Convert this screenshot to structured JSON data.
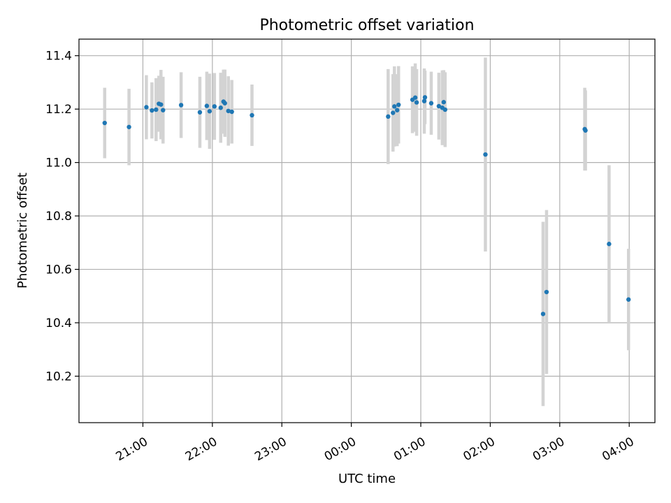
{
  "chart_data": {
    "type": "scatter",
    "title": "Photometric offset variation",
    "xlabel": "UTC time",
    "ylabel": "Photometric offset",
    "x_unit": "hours after 00:00 UTC",
    "xlim": [
      -3.92,
      4.37
    ],
    "ylim": [
      10.026,
      11.462
    ],
    "x_ticks": [
      {
        "value": -3.0,
        "label": "21:00"
      },
      {
        "value": -2.0,
        "label": "22:00"
      },
      {
        "value": -1.0,
        "label": "23:00"
      },
      {
        "value": 0.0,
        "label": "00:00"
      },
      {
        "value": 1.0,
        "label": "01:00"
      },
      {
        "value": 2.0,
        "label": "02:00"
      },
      {
        "value": 3.0,
        "label": "03:00"
      },
      {
        "value": 4.0,
        "label": "04:00"
      }
    ],
    "y_ticks": [
      10.2,
      10.4,
      10.6,
      10.8,
      11.0,
      11.2,
      11.4
    ],
    "y_tick_labels": [
      "10.2",
      "10.4",
      "10.6",
      "10.8",
      "11.0",
      "11.2",
      "11.4"
    ],
    "grid": true,
    "colors": {
      "point": "#1f77b4",
      "errorbar": "#d3d3d3"
    },
    "series": [
      {
        "points": [
          {
            "x": -3.55,
            "y": 11.148,
            "err": 0.132
          },
          {
            "x": -3.2,
            "y": 11.133,
            "err": 0.143
          },
          {
            "x": -2.95,
            "y": 11.207,
            "err": 0.12
          },
          {
            "x": -2.87,
            "y": 11.195,
            "err": 0.105
          },
          {
            "x": -2.81,
            "y": 11.198,
            "err": 0.118
          },
          {
            "x": -2.77,
            "y": 11.22,
            "err": 0.105
          },
          {
            "x": -2.74,
            "y": 11.217,
            "err": 0.13
          },
          {
            "x": -2.71,
            "y": 11.196,
            "err": 0.125
          },
          {
            "x": -2.45,
            "y": 11.215,
            "err": 0.123
          },
          {
            "x": -2.18,
            "y": 11.188,
            "err": 0.133
          },
          {
            "x": -2.08,
            "y": 11.212,
            "err": 0.128
          },
          {
            "x": -2.04,
            "y": 11.192,
            "err": 0.141
          },
          {
            "x": -1.97,
            "y": 11.21,
            "err": 0.125
          },
          {
            "x": -1.88,
            "y": 11.205,
            "err": 0.131
          },
          {
            "x": -1.84,
            "y": 11.228,
            "err": 0.12
          },
          {
            "x": -1.82,
            "y": 11.222,
            "err": 0.126
          },
          {
            "x": -1.77,
            "y": 11.193,
            "err": 0.13
          },
          {
            "x": -1.72,
            "y": 11.19,
            "err": 0.119
          },
          {
            "x": -1.43,
            "y": 11.177,
            "err": 0.115
          },
          {
            "x": 0.53,
            "y": 11.172,
            "err": 0.178
          },
          {
            "x": 0.6,
            "y": 11.186,
            "err": 0.145
          },
          {
            "x": 0.62,
            "y": 11.21,
            "err": 0.15
          },
          {
            "x": 0.66,
            "y": 11.196,
            "err": 0.135
          },
          {
            "x": 0.68,
            "y": 11.216,
            "err": 0.145
          },
          {
            "x": 0.88,
            "y": 11.235,
            "err": 0.125
          },
          {
            "x": 0.92,
            "y": 11.243,
            "err": 0.128
          },
          {
            "x": 0.94,
            "y": 11.225,
            "err": 0.125
          },
          {
            "x": 1.05,
            "y": 11.23,
            "err": 0.122
          },
          {
            "x": 1.06,
            "y": 11.244,
            "err": 0.1
          },
          {
            "x": 1.15,
            "y": 11.222,
            "err": 0.118
          },
          {
            "x": 1.26,
            "y": 11.211,
            "err": 0.125
          },
          {
            "x": 1.31,
            "y": 11.205,
            "err": 0.14
          },
          {
            "x": 1.33,
            "y": 11.226,
            "err": 0.12
          },
          {
            "x": 1.35,
            "y": 11.198,
            "err": 0.14
          },
          {
            "x": 1.93,
            "y": 11.03,
            "err": 0.363
          },
          {
            "x": 2.76,
            "y": 10.433,
            "err": 0.345
          },
          {
            "x": 2.81,
            "y": 10.515,
            "err": 0.307
          },
          {
            "x": 3.36,
            "y": 11.125,
            "err": 0.155
          },
          {
            "x": 3.37,
            "y": 11.12,
            "err": 0.15
          },
          {
            "x": 3.71,
            "y": 10.695,
            "err": 0.295
          },
          {
            "x": 3.99,
            "y": 10.487,
            "err": 0.19
          }
        ]
      }
    ]
  }
}
